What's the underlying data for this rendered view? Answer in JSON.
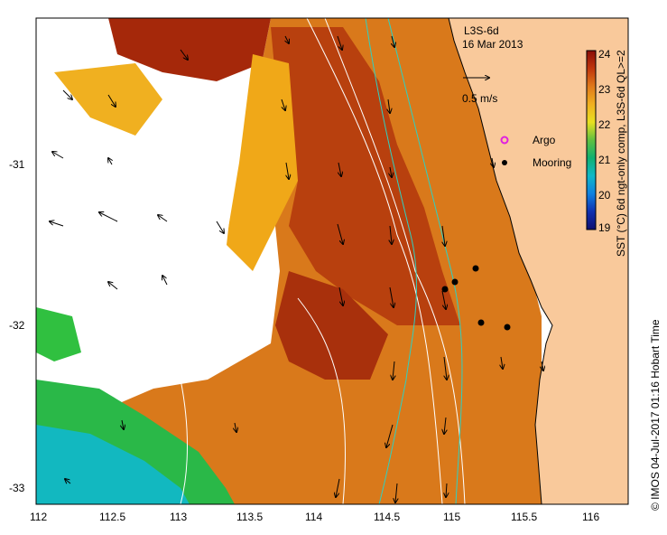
{
  "map": {
    "product": "L3S-6d",
    "date": "16 Mar 2013",
    "velocity_scale_label": "0.5 m/s",
    "legend": {
      "argo_label": "Argo",
      "mooring_label": "Mooring",
      "argo_color": "#e020e0",
      "mooring_color": "#000000"
    },
    "colorbar": {
      "title": "SST (°C) 6d ngt-only comp, L3S-6d QL>=2",
      "ticks": [
        "24",
        "23",
        "22",
        "21",
        "20",
        "19"
      ],
      "range": [
        19,
        24
      ]
    },
    "axes": {
      "x_ticks": [
        "112",
        "112.5",
        "113",
        "113.5",
        "114",
        "114.5",
        "115",
        "115.5",
        "116"
      ],
      "y_ticks": [
        "-31",
        "-32",
        "-33"
      ],
      "lon_range": [
        112,
        116.3
      ],
      "lat_range": [
        -30.0,
        -33.1
      ]
    },
    "credit": "© IMOS 04-Jul-2017 01:16 Hobart Time",
    "colors": {
      "land": "#f9c99b",
      "sst_hot": "#b02c0a",
      "sst_warm": "#d9791b",
      "sst_mid": "#f0b020",
      "sst_cool": "#2ab848",
      "sst_cold": "#12b8c0",
      "cloud": "#ffffff"
    }
  }
}
